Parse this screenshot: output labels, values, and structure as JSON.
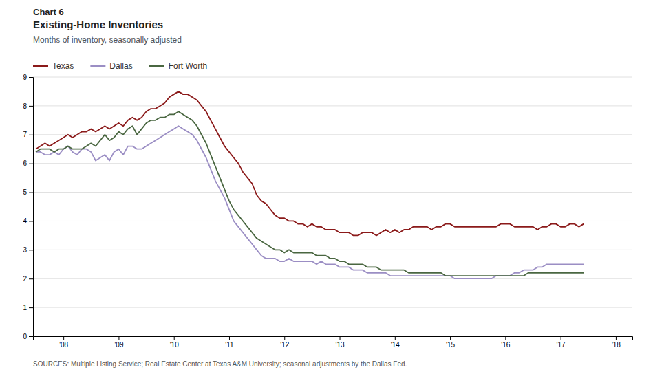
{
  "chart_data": {
    "type": "line",
    "title": [
      "Chart 6",
      "Existing-Home Inventories"
    ],
    "subtitle": "Months of inventory,  seasonally adjusted",
    "source": "SOURCES: Multiple Listing Service; Real Estate Center at Texas A&M University;  seasonal adjustments by the Dallas Fed.",
    "x": [
      2007.5,
      2007.583333,
      2007.666667,
      2007.75,
      2007.833333,
      2007.916667,
      2008,
      2008.083333,
      2008.166667,
      2008.25,
      2008.333333,
      2008.416667,
      2008.5,
      2008.583333,
      2008.666667,
      2008.75,
      2008.833333,
      2008.916667,
      2009,
      2009.083333,
      2009.166667,
      2009.25,
      2009.333333,
      2009.416667,
      2009.5,
      2009.583333,
      2009.666667,
      2009.75,
      2009.833333,
      2009.916667,
      2010,
      2010.083333,
      2010.166667,
      2010.25,
      2010.333333,
      2010.416667,
      2010.5,
      2010.583333,
      2010.666667,
      2010.75,
      2010.833333,
      2010.916667,
      2011,
      2011.083333,
      2011.166667,
      2011.25,
      2011.333333,
      2011.416667,
      2011.5,
      2011.583333,
      2011.666667,
      2011.75,
      2011.833333,
      2011.916667,
      2012,
      2012.083333,
      2012.166667,
      2012.25,
      2012.333333,
      2012.416667,
      2012.5,
      2012.583333,
      2012.666667,
      2012.75,
      2012.833333,
      2012.916667,
      2013,
      2013.083333,
      2013.166667,
      2013.25,
      2013.333333,
      2013.416667,
      2013.5,
      2013.583333,
      2013.666667,
      2013.75,
      2013.833333,
      2013.916667,
      2014,
      2014.083333,
      2014.166667,
      2014.25,
      2014.333333,
      2014.416667,
      2014.5,
      2014.583333,
      2014.666667,
      2014.75,
      2014.833333,
      2014.916667,
      2015,
      2015.083333,
      2015.166667,
      2015.25,
      2015.333333,
      2015.416667,
      2015.5,
      2015.583333,
      2015.666667,
      2015.75,
      2015.833333,
      2015.916667,
      2016,
      2016.083333,
      2016.166667,
      2016.25,
      2016.333333,
      2016.416667,
      2016.5,
      2016.583333,
      2016.666667,
      2016.75,
      2016.833333,
      2016.916667,
      2017,
      2017.083333,
      2017.166667,
      2017.25,
      2017.333333,
      2017.416667
    ],
    "xlim": [
      2007.45,
      2018.3
    ],
    "xticks": [
      {
        "value": 2008,
        "label": "'08"
      },
      {
        "value": 2009,
        "label": "'09"
      },
      {
        "value": 2010,
        "label": "'10"
      },
      {
        "value": 2011,
        "label": "'11"
      },
      {
        "value": 2012,
        "label": "'12"
      },
      {
        "value": 2013,
        "label": "'13"
      },
      {
        "value": 2014,
        "label": "'14"
      },
      {
        "value": 2015,
        "label": "'15"
      },
      {
        "value": 2016,
        "label": "'16"
      },
      {
        "value": 2017,
        "label": "'17"
      },
      {
        "value": 2018,
        "label": "'18"
      }
    ],
    "ylim": [
      0,
      9
    ],
    "yticks": [
      0,
      1,
      2,
      3,
      4,
      5,
      6,
      7,
      8,
      9
    ],
    "grid": true,
    "legend": "top",
    "series": [
      {
        "name": "Texas",
        "color": "#8b1a1a",
        "values": [
          6.5,
          6.6,
          6.7,
          6.6,
          6.7,
          6.8,
          6.9,
          7.0,
          6.9,
          7.0,
          7.1,
          7.1,
          7.2,
          7.1,
          7.2,
          7.3,
          7.2,
          7.3,
          7.4,
          7.3,
          7.5,
          7.6,
          7.5,
          7.6,
          7.8,
          7.9,
          7.9,
          8.0,
          8.1,
          8.3,
          8.4,
          8.5,
          8.4,
          8.4,
          8.3,
          8.2,
          8.0,
          7.8,
          7.5,
          7.2,
          6.9,
          6.6,
          6.4,
          6.2,
          6.0,
          5.7,
          5.5,
          5.3,
          4.9,
          4.7,
          4.6,
          4.4,
          4.2,
          4.1,
          4.1,
          4.0,
          4.0,
          3.9,
          3.9,
          3.8,
          3.9,
          3.8,
          3.8,
          3.7,
          3.7,
          3.7,
          3.6,
          3.6,
          3.6,
          3.5,
          3.5,
          3.6,
          3.6,
          3.6,
          3.5,
          3.6,
          3.7,
          3.6,
          3.7,
          3.6,
          3.7,
          3.7,
          3.8,
          3.8,
          3.8,
          3.8,
          3.7,
          3.8,
          3.8,
          3.9,
          3.9,
          3.8,
          3.8,
          3.8,
          3.8,
          3.8,
          3.8,
          3.8,
          3.8,
          3.8,
          3.8,
          3.9,
          3.9,
          3.9,
          3.8,
          3.8,
          3.8,
          3.8,
          3.8,
          3.7,
          3.8,
          3.8,
          3.9,
          3.9,
          3.8,
          3.8,
          3.9,
          3.9,
          3.8,
          3.9
        ]
      },
      {
        "name": "Dallas",
        "color": "#9b8ec4",
        "values": [
          6.4,
          6.4,
          6.3,
          6.3,
          6.4,
          6.3,
          6.5,
          6.6,
          6.4,
          6.3,
          6.5,
          6.5,
          6.4,
          6.1,
          6.2,
          6.3,
          6.1,
          6.4,
          6.5,
          6.3,
          6.6,
          6.6,
          6.5,
          6.5,
          6.6,
          6.7,
          6.8,
          6.9,
          7.0,
          7.1,
          7.2,
          7.3,
          7.2,
          7.1,
          7.0,
          6.8,
          6.5,
          6.2,
          5.8,
          5.4,
          5.1,
          4.8,
          4.4,
          4.0,
          3.8,
          3.6,
          3.4,
          3.2,
          3.0,
          2.8,
          2.7,
          2.7,
          2.7,
          2.6,
          2.6,
          2.7,
          2.6,
          2.6,
          2.6,
          2.6,
          2.6,
          2.5,
          2.6,
          2.5,
          2.5,
          2.5,
          2.4,
          2.4,
          2.4,
          2.3,
          2.3,
          2.3,
          2.2,
          2.2,
          2.2,
          2.2,
          2.2,
          2.1,
          2.1,
          2.1,
          2.1,
          2.1,
          2.1,
          2.1,
          2.1,
          2.1,
          2.1,
          2.1,
          2.1,
          2.1,
          2.1,
          2.0,
          2.0,
          2.0,
          2.0,
          2.0,
          2.0,
          2.0,
          2.0,
          2.0,
          2.1,
          2.1,
          2.1,
          2.1,
          2.2,
          2.2,
          2.3,
          2.3,
          2.3,
          2.4,
          2.4,
          2.5,
          2.5,
          2.5,
          2.5,
          2.5,
          2.5,
          2.5,
          2.5,
          2.5
        ]
      },
      {
        "name": "Fort Worth",
        "color": "#4a6741",
        "values": [
          6.4,
          6.5,
          6.5,
          6.5,
          6.4,
          6.5,
          6.5,
          6.6,
          6.5,
          6.5,
          6.5,
          6.6,
          6.7,
          6.6,
          6.8,
          7.0,
          6.8,
          6.9,
          7.1,
          7.0,
          7.2,
          7.3,
          7.0,
          7.2,
          7.4,
          7.5,
          7.5,
          7.6,
          7.6,
          7.7,
          7.7,
          7.8,
          7.7,
          7.6,
          7.5,
          7.3,
          7.0,
          6.7,
          6.3,
          5.9,
          5.5,
          5.1,
          4.7,
          4.4,
          4.2,
          4.0,
          3.8,
          3.6,
          3.4,
          3.3,
          3.2,
          3.1,
          3.0,
          3.0,
          2.9,
          3.0,
          2.9,
          2.9,
          2.9,
          2.9,
          2.9,
          2.8,
          2.8,
          2.8,
          2.7,
          2.7,
          2.6,
          2.6,
          2.5,
          2.5,
          2.5,
          2.5,
          2.4,
          2.4,
          2.4,
          2.3,
          2.3,
          2.3,
          2.3,
          2.3,
          2.3,
          2.2,
          2.2,
          2.2,
          2.2,
          2.2,
          2.2,
          2.2,
          2.2,
          2.1,
          2.1,
          2.1,
          2.1,
          2.1,
          2.1,
          2.1,
          2.1,
          2.1,
          2.1,
          2.1,
          2.1,
          2.1,
          2.1,
          2.1,
          2.1,
          2.1,
          2.1,
          2.2,
          2.2,
          2.2,
          2.2,
          2.2,
          2.2,
          2.2,
          2.2,
          2.2,
          2.2,
          2.2,
          2.2,
          2.2
        ]
      }
    ]
  }
}
